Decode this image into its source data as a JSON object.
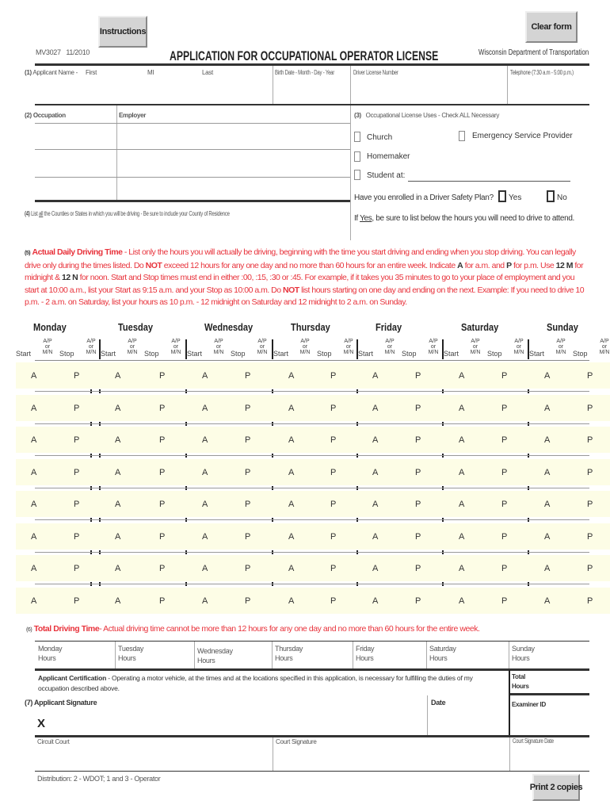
{
  "buttons": {
    "instructions": "Instructions",
    "clear": "Clear form",
    "print": "Print 2 copies"
  },
  "header": {
    "form_id": "MV3027",
    "form_date": "11/2010",
    "title": "APPLICATION FOR OCCUPATIONAL OPERATOR LICENSE",
    "agency": "Wisconsin Department of Transportation"
  },
  "s1": {
    "num": "(1)",
    "name": "Applicant Name -",
    "first": "First",
    "mi": "MI",
    "last": "Last",
    "birth": "Birth Date - Month - Day - Year",
    "dl": "Driver License Number",
    "phone": "Telephone (7:30 a.m - 5:00 p.m.)"
  },
  "s2": {
    "num": "(2)",
    "occupation": "Occupation",
    "employer": "Employer"
  },
  "s3": {
    "num": "(3)",
    "title": "Occupational License Uses - Check ALL Necessary",
    "church": "Church",
    "esp": "Emergency Service Provider",
    "homemaker": "Homemaker",
    "student": "Student at:",
    "safety_q": "Have you enrolled in a Driver Safety Plan?",
    "yes": "Yes",
    "no": "No",
    "note_pre": "If ",
    "note_yes": "Yes",
    "note_post": ", be sure to list below the hours you will need to drive to attend."
  },
  "s4": {
    "num": "(4)",
    "pre": "List ",
    "all": "all",
    "post": " the Counties or States in which you will be driving - Be sure to include your County of Residence"
  },
  "s5": {
    "num": "(5)",
    "segments": [
      {
        "t": "Actual Daily Driving Time",
        "b": true
      },
      {
        "t": " - List only the hours you will actually be driving, beginning with the time you start driving and ending when you stop driving. You can legally drive only during the times listed. Do "
      },
      {
        "t": "NOT",
        "b": true
      },
      {
        "t": " exceed 12 hours for any one day and no more than 60 hours for an entire week. Indicate "
      },
      {
        "t": "A",
        "b": true,
        "d": true
      },
      {
        "t": " for a.m. and "
      },
      {
        "t": "P",
        "b": true,
        "d": true
      },
      {
        "t": " for p.m. Use "
      },
      {
        "t": "12 M",
        "b": true,
        "d": true
      },
      {
        "t": " for midnight & "
      },
      {
        "t": "12 N",
        "b": true,
        "d": true
      },
      {
        "t": " for noon. Start and Stop times must end in either :00, :15, :30 or :45. For example, if it takes you 35 minutes to go to your place of employment and you start at 10:00 a.m., list your Start as 9:15 a.m. and your Stop as 10:00 a.m. Do "
      },
      {
        "t": "NOT",
        "b": true
      },
      {
        "t": " list hours starting on one day and ending on the next. Example: If you need to drive 10 p.m. - 2 a.m. on Saturday, list your hours as 10 p.m. - 12 midnight on Saturday and 12 midnight to 2 a.m. on Sunday."
      }
    ]
  },
  "schedule": {
    "days": [
      "Monday",
      "Tuesday",
      "Wednesday",
      "Thursday",
      "Friday",
      "Saturday",
      "Sunday"
    ],
    "start": "Start",
    "stop": "Stop",
    "ap": "A/P",
    "or": "or",
    "mn": "M/N",
    "a": "A",
    "p": "P",
    "rows": 8
  },
  "s6": {
    "num": "(6)",
    "title": "Total Driving Time",
    "text": "- Actual driving time cannot be more than 12 hours for any one day and no more than 60 hours for the entire week.",
    "hours": "Hours"
  },
  "cert": {
    "title": "Applicant Certification",
    "text": " - Operating a motor vehicle, at the times and at the locations specified in this application, is necessary for fulfilling the duties of my occupation described above.",
    "total": "Total",
    "hours": "Hours"
  },
  "s7": {
    "num": "(7)",
    "signature": "Applicant Signature",
    "date": "Date",
    "examiner": "Examiner ID",
    "x": "X"
  },
  "court": {
    "circuit": "Circuit Court",
    "signature": "Court Signature",
    "date": "Court Signature Date"
  },
  "footer": {
    "distribution": "Distribution:  2 - WDOT;  1 and 3 - Operator"
  },
  "colors": {
    "red": "#e8333c",
    "field": "#fdfde6"
  }
}
